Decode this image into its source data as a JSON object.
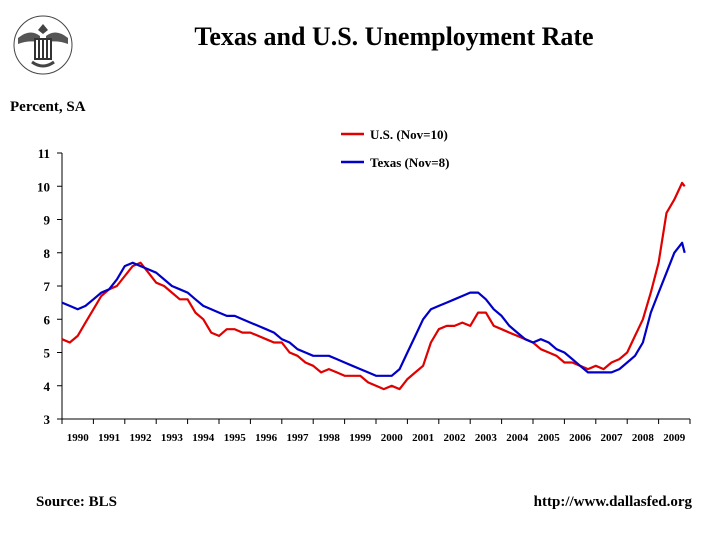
{
  "header": {
    "title": "Texas and U.S. Unemployment Rate",
    "ylabel": "Percent,  SA"
  },
  "footer": {
    "source": "Source: BLS",
    "url": "http://www.dallasfed.org"
  },
  "chart_data": {
    "type": "line",
    "title": "Texas and U.S. Unemployment Rate",
    "xlabel": "",
    "ylabel": "Percent,  SA",
    "ylim": [
      3,
      11
    ],
    "yticks": [
      3,
      4,
      5,
      6,
      7,
      8,
      9,
      10,
      11
    ],
    "xlim": [
      1990,
      2010
    ],
    "xtick_labels": [
      "1990",
      "1991",
      "1992",
      "1993",
      "1994",
      "1995",
      "1996",
      "1997",
      "1998",
      "1999",
      "2000",
      "2001",
      "2002",
      "2003",
      "2004",
      "2005",
      "2006",
      "2007",
      "2008",
      "2009"
    ],
    "grid": false,
    "legend": "top-right",
    "colors": {
      "us": "#e00000",
      "texas": "#0000c8"
    },
    "series": [
      {
        "name": "U.S. (Nov=10)",
        "key": "us",
        "x": [
          1990.0,
          1990.25,
          1990.5,
          1990.75,
          1991.0,
          1991.25,
          1991.5,
          1991.75,
          1992.0,
          1992.25,
          1992.5,
          1992.75,
          1993.0,
          1993.25,
          1993.5,
          1993.75,
          1994.0,
          1994.25,
          1994.5,
          1994.75,
          1995.0,
          1995.25,
          1995.5,
          1995.75,
          1996.0,
          1996.25,
          1996.5,
          1996.75,
          1997.0,
          1997.25,
          1997.5,
          1997.75,
          1998.0,
          1998.25,
          1998.5,
          1998.75,
          1999.0,
          1999.25,
          1999.5,
          1999.75,
          2000.0,
          2000.25,
          2000.5,
          2000.75,
          2001.0,
          2001.25,
          2001.5,
          2001.75,
          2002.0,
          2002.25,
          2002.5,
          2002.75,
          2003.0,
          2003.25,
          2003.5,
          2003.75,
          2004.0,
          2004.25,
          2004.5,
          2004.75,
          2005.0,
          2005.25,
          2005.5,
          2005.75,
          2006.0,
          2006.25,
          2006.5,
          2006.75,
          2007.0,
          2007.25,
          2007.5,
          2007.75,
          2008.0,
          2008.25,
          2008.5,
          2008.75,
          2009.0,
          2009.25,
          2009.5,
          2009.75,
          2009.83
        ],
        "values": [
          5.4,
          5.3,
          5.5,
          5.9,
          6.3,
          6.7,
          6.9,
          7.0,
          7.3,
          7.6,
          7.7,
          7.4,
          7.1,
          7.0,
          6.8,
          6.6,
          6.6,
          6.2,
          6.0,
          5.6,
          5.5,
          5.7,
          5.7,
          5.6,
          5.6,
          5.5,
          5.4,
          5.3,
          5.3,
          5.0,
          4.9,
          4.7,
          4.6,
          4.4,
          4.5,
          4.4,
          4.3,
          4.3,
          4.3,
          4.1,
          4.0,
          3.9,
          4.0,
          3.9,
          4.2,
          4.4,
          4.6,
          5.3,
          5.7,
          5.8,
          5.8,
          5.9,
          5.8,
          6.2,
          6.2,
          5.8,
          5.7,
          5.6,
          5.5,
          5.4,
          5.3,
          5.1,
          5.0,
          4.9,
          4.7,
          4.7,
          4.6,
          4.5,
          4.6,
          4.5,
          4.7,
          4.8,
          5.0,
          5.5,
          6.0,
          6.8,
          7.7,
          9.2,
          9.6,
          10.1,
          10.0
        ]
      },
      {
        "name": "Texas (Nov=8)",
        "key": "texas",
        "x": [
          1990.0,
          1990.25,
          1990.5,
          1990.75,
          1991.0,
          1991.25,
          1991.5,
          1991.75,
          1992.0,
          1992.25,
          1992.5,
          1992.75,
          1993.0,
          1993.25,
          1993.5,
          1993.75,
          1994.0,
          1994.25,
          1994.5,
          1994.75,
          1995.0,
          1995.25,
          1995.5,
          1995.75,
          1996.0,
          1996.25,
          1996.5,
          1996.75,
          1997.0,
          1997.25,
          1997.5,
          1997.75,
          1998.0,
          1998.25,
          1998.5,
          1998.75,
          1999.0,
          1999.25,
          1999.5,
          1999.75,
          2000.0,
          2000.25,
          2000.5,
          2000.75,
          2001.0,
          2001.25,
          2001.5,
          2001.75,
          2002.0,
          2002.25,
          2002.5,
          2002.75,
          2003.0,
          2003.25,
          2003.5,
          2003.75,
          2004.0,
          2004.25,
          2004.5,
          2004.75,
          2005.0,
          2005.25,
          2005.5,
          2005.75,
          2006.0,
          2006.25,
          2006.5,
          2006.75,
          2007.0,
          2007.25,
          2007.5,
          2007.75,
          2008.0,
          2008.25,
          2008.5,
          2008.75,
          2009.0,
          2009.25,
          2009.5,
          2009.75,
          2009.83
        ],
        "values": [
          6.5,
          6.4,
          6.3,
          6.4,
          6.6,
          6.8,
          6.9,
          7.2,
          7.6,
          7.7,
          7.6,
          7.5,
          7.4,
          7.2,
          7.0,
          6.9,
          6.8,
          6.6,
          6.4,
          6.3,
          6.2,
          6.1,
          6.1,
          6.0,
          5.9,
          5.8,
          5.7,
          5.6,
          5.4,
          5.3,
          5.1,
          5.0,
          4.9,
          4.9,
          4.9,
          4.8,
          4.7,
          4.6,
          4.5,
          4.4,
          4.3,
          4.3,
          4.3,
          4.5,
          5.0,
          5.5,
          6.0,
          6.3,
          6.4,
          6.5,
          6.6,
          6.7,
          6.8,
          6.8,
          6.6,
          6.3,
          6.1,
          5.8,
          5.6,
          5.4,
          5.3,
          5.4,
          5.3,
          5.1,
          5.0,
          4.8,
          4.6,
          4.4,
          4.4,
          4.4,
          4.4,
          4.5,
          4.7,
          4.9,
          5.3,
          6.2,
          6.8,
          7.4,
          8.0,
          8.3,
          8.0
        ]
      }
    ]
  }
}
